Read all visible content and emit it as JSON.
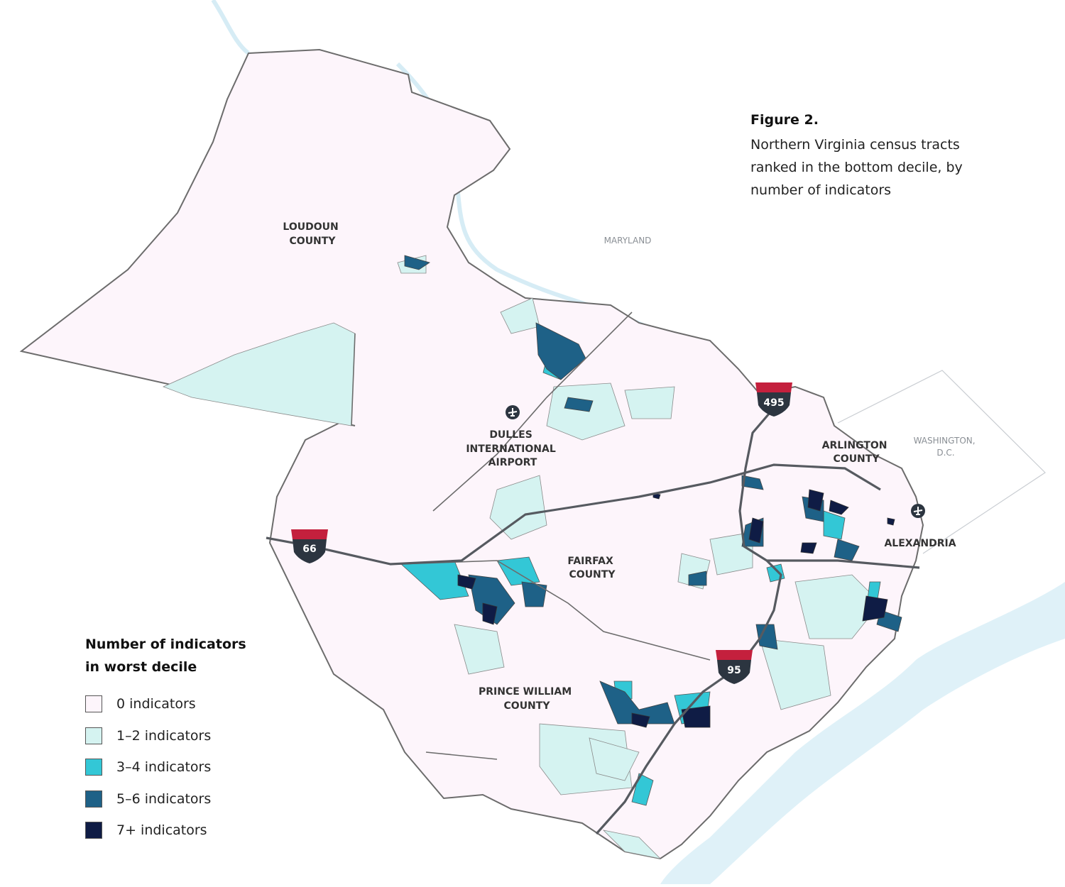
{
  "figure": {
    "title": "Figure 2.",
    "subtitle_lines": [
      "Northern Virginia census tracts",
      "ranked in the bottom decile, by",
      "number of indicators"
    ]
  },
  "legend": {
    "title_lines": [
      "Number of indicators",
      "in worst decile"
    ],
    "items": [
      {
        "label": "0 indicators",
        "color": "#fdf5fb"
      },
      {
        "label": "1–2 indicators",
        "color": "#d5f3f1"
      },
      {
        "label": "3–4 indicators",
        "color": "#33c7d6"
      },
      {
        "label": "5–6 indicators",
        "color": "#1e6187"
      },
      {
        "label": "7+ indicators",
        "color": "#0f1c45"
      }
    ]
  },
  "map": {
    "region_labels": {
      "loudoun": [
        "LOUDOUN",
        "COUNTY"
      ],
      "fairfax": [
        "FAIRFAX",
        "COUNTY"
      ],
      "prince_william": [
        "PRINCE WILLIAM",
        "COUNTY"
      ],
      "arlington": [
        "ARLINGTON",
        "COUNTY"
      ],
      "alexandria": [
        "ALEXANDRIA"
      ],
      "dulles": [
        "DULLES",
        "INTERNATIONAL",
        "AIRPORT"
      ],
      "maryland": [
        "MARYLAND"
      ],
      "dc": [
        "WASHINGTON,",
        "D.C."
      ]
    },
    "highways": {
      "i66": "66",
      "i495": "495",
      "i95": "95"
    },
    "icons": [
      "airport-icon"
    ],
    "colors": {
      "boundary": "#6c6c6c",
      "road": "#565a60",
      "water": "#dff1f8",
      "shield_top": "#c4203d",
      "shield_body": "#2c3540"
    }
  }
}
